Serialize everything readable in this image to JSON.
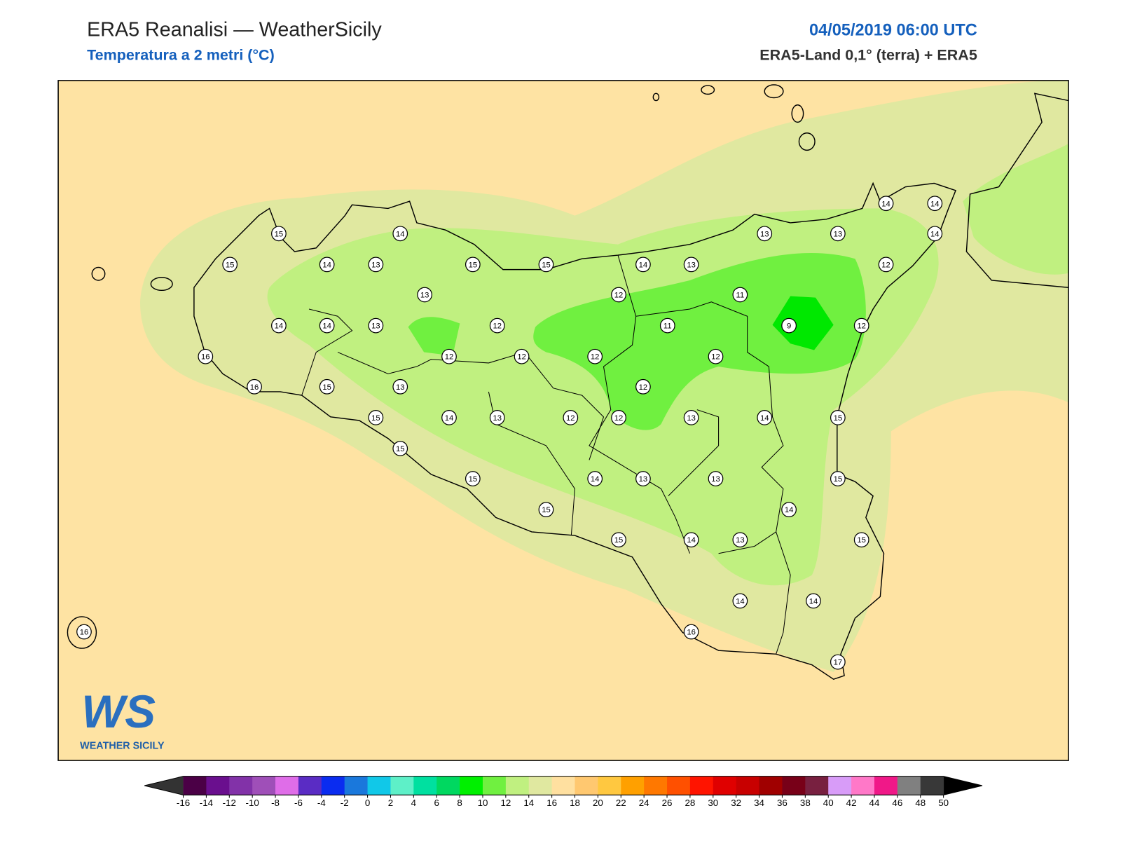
{
  "header": {
    "title": "ERA5 Reanalisi — WeatherSicily",
    "subtitle": "Temperatura a 2 metri (°C)",
    "datetime": "04/05/2019 06:00 UTC",
    "source": "ERA5-Land 0,1° (terra) + ERA5"
  },
  "logo": {
    "mark": "WS",
    "name": "WEATHER SICILY"
  },
  "stations": [
    15,
    14,
    15,
    14,
    13,
    15,
    15,
    14,
    13,
    13,
    13,
    14,
    14,
    14,
    12,
    13,
    12,
    11,
    14,
    14,
    13,
    12,
    11,
    9,
    12,
    16,
    12,
    12,
    12,
    12,
    16,
    15,
    13,
    12,
    15,
    14,
    13,
    12,
    12,
    13,
    14,
    15,
    15,
    15,
    14,
    13,
    13,
    15,
    15,
    14,
    15,
    14,
    13,
    15,
    14,
    14,
    16,
    16,
    17
  ],
  "colorbar": {
    "ticks": [
      -16,
      -14,
      -12,
      -10,
      -8,
      -6,
      -4,
      -2,
      0,
      2,
      4,
      6,
      8,
      10,
      12,
      14,
      16,
      18,
      20,
      22,
      24,
      26,
      28,
      30,
      32,
      34,
      36,
      38,
      40,
      42,
      44,
      46,
      48,
      50
    ],
    "colors": [
      "#4b0046",
      "#6a0f8e",
      "#8232a8",
      "#9f4fb8",
      "#df6de8",
      "#5a2cc4",
      "#0a2cf0",
      "#1a78dc",
      "#11c8e8",
      "#5ef0c8",
      "#00e0a0",
      "#00d860",
      "#00f000",
      "#70f040",
      "#c0f080",
      "#e0e8a0",
      "#ffe0a0",
      "#ffc870",
      "#ffc840",
      "#ffa000",
      "#ff7800",
      "#ff5000",
      "#ff1400",
      "#e00000",
      "#c80000",
      "#a00000",
      "#780018",
      "#782040",
      "#d89cf8",
      "#ff78c8",
      "#f01888",
      "#808080",
      "#383838"
    ],
    "under": "#333333",
    "over": "#000000"
  }
}
